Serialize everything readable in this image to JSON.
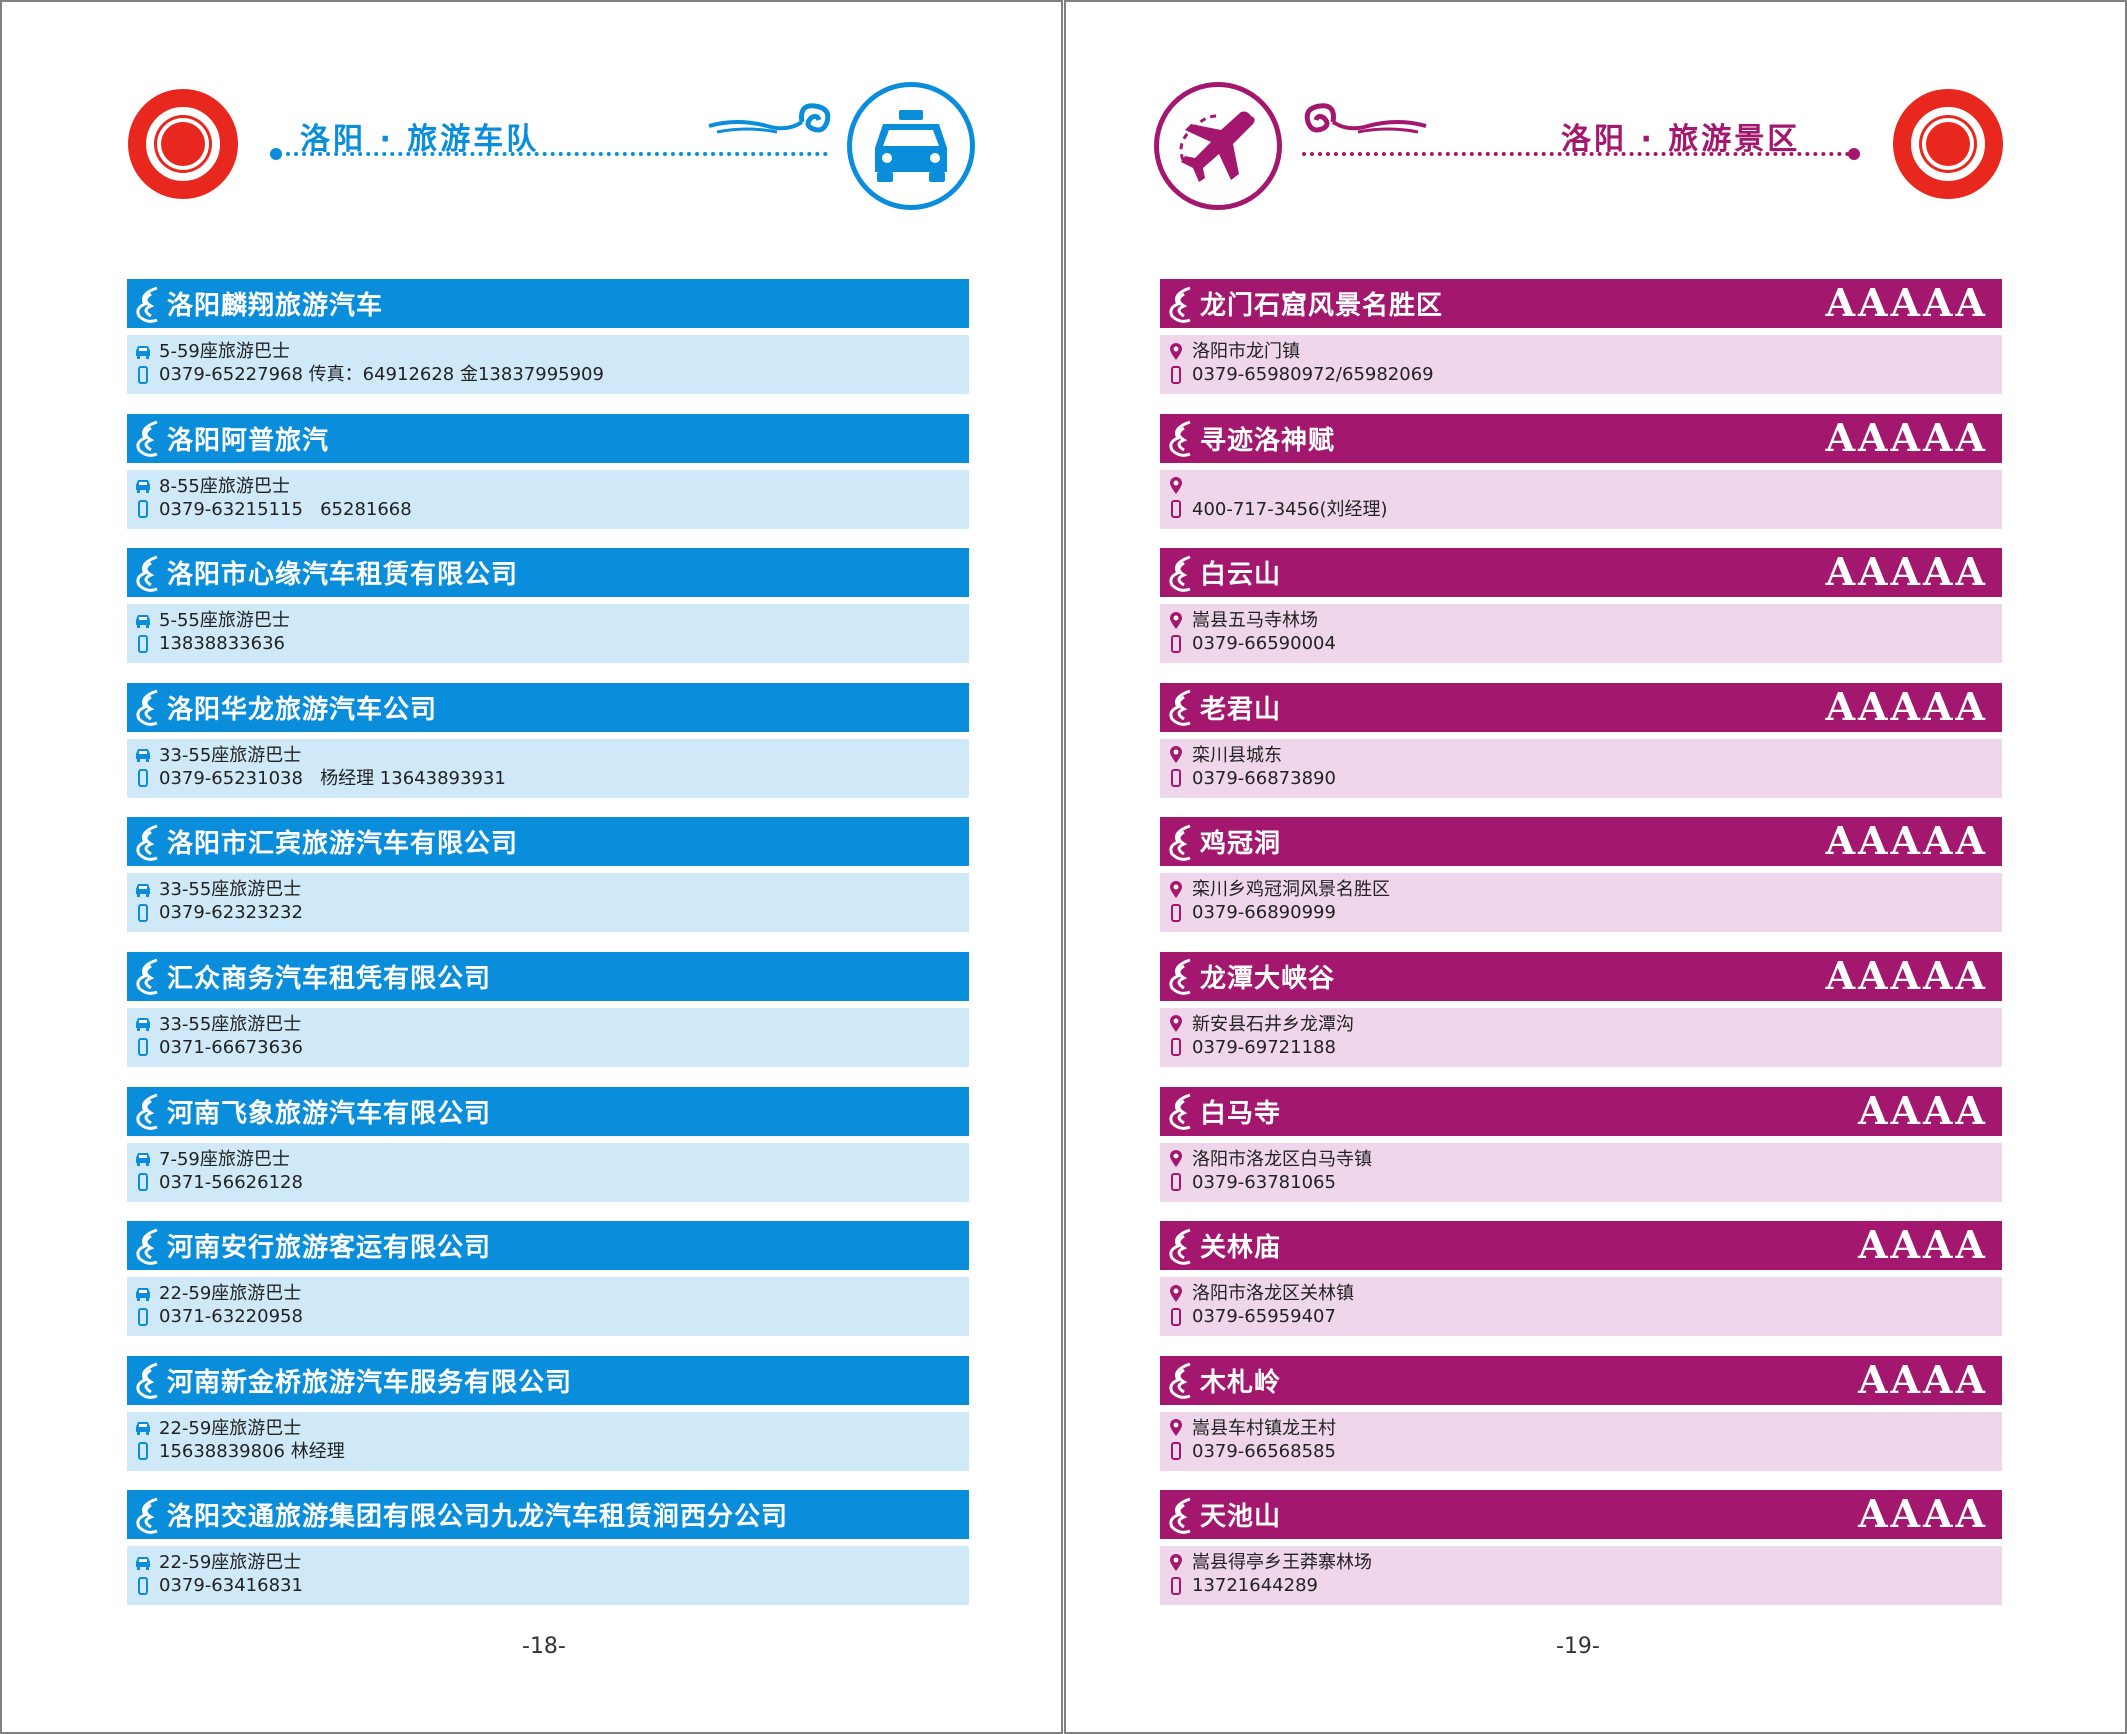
{
  "colors": {
    "blue": "#0a8ddb",
    "blue_light": "#cfe9f9",
    "purple": "#a3186e",
    "purple_light": "#f0d6ea",
    "logo_red": "#e8281e"
  },
  "left_page": {
    "header_title": "洛阳 · 旅游车队",
    "header_icon": "taxi-icon",
    "page_number": "-18-",
    "entries": [
      {
        "name": "洛阳麟翔旅游汽车",
        "capacity": "5-59座旅游巴士",
        "phone": "0379-65227968 传真：64912628 金13837995909"
      },
      {
        "name": "洛阳阿普旅汽",
        "capacity": "8-55座旅游巴士",
        "phone": "0379-63215115   65281668"
      },
      {
        "name": "洛阳市心缘汽车租赁有限公司",
        "capacity": "5-55座旅游巴士",
        "phone": "13838833636"
      },
      {
        "name": "洛阳华龙旅游汽车公司",
        "capacity": "33-55座旅游巴士",
        "phone": "0379-65231038   杨经理 13643893931"
      },
      {
        "name": "洛阳市汇宾旅游汽车有限公司",
        "capacity": "33-55座旅游巴士",
        "phone": "0379-62323232"
      },
      {
        "name": "汇众商务汽车租凭有限公司",
        "capacity": "33-55座旅游巴士",
        "phone": "0371-66673636"
      },
      {
        "name": "河南飞象旅游汽车有限公司",
        "capacity": "7-59座旅游巴士",
        "phone": "0371-56626128"
      },
      {
        "name": "河南安行旅游客运有限公司",
        "capacity": "22-59座旅游巴士",
        "phone": "0371-63220958"
      },
      {
        "name": "河南新金桥旅游汽车服务有限公司",
        "capacity": "22-59座旅游巴士",
        "phone": "15638839806 林经理"
      },
      {
        "name": "洛阳交通旅游集团有限公司九龙汽车租赁涧西分公司",
        "capacity": "22-59座旅游巴士",
        "phone": "0379-63416831"
      }
    ]
  },
  "right_page": {
    "header_title": "洛阳 · 旅游景区",
    "header_icon": "airplane-icon",
    "page_number": "-19-",
    "entries": [
      {
        "name": "龙门石窟风景名胜区",
        "rating": "AAAAA",
        "address": "洛阳市龙门镇",
        "phone": "0379-65980972/65982069"
      },
      {
        "name": "寻迹洛神赋",
        "rating": "AAAAA",
        "address": "",
        "phone": "400-717-3456(刘经理)"
      },
      {
        "name": "白云山",
        "rating": "AAAAA",
        "address": "嵩县五马寺林场",
        "phone": "0379-66590004"
      },
      {
        "name": "老君山",
        "rating": "AAAAA",
        "address": "栾川县城东",
        "phone": "0379-66873890"
      },
      {
        "name": "鸡冠洞",
        "rating": "AAAAA",
        "address": "栾川乡鸡冠洞风景名胜区",
        "phone": "0379-66890999"
      },
      {
        "name": "龙潭大峡谷",
        "rating": "AAAAA",
        "address": "新安县石井乡龙潭沟",
        "phone": "0379-69721188"
      },
      {
        "name": "白马寺",
        "rating": "AAAA",
        "address": "洛阳市洛龙区白马寺镇",
        "phone": "0379-63781065"
      },
      {
        "name": "关林庙",
        "rating": "AAAA",
        "address": "洛阳市洛龙区关林镇",
        "phone": "0379-65959407"
      },
      {
        "name": "木札岭",
        "rating": "AAAA",
        "address": "嵩县车村镇龙王村",
        "phone": "0379-66568585"
      },
      {
        "name": "天池山",
        "rating": "AAAA",
        "address": "嵩县得亭乡王莽寨林场",
        "phone": "13721644289"
      }
    ]
  }
}
